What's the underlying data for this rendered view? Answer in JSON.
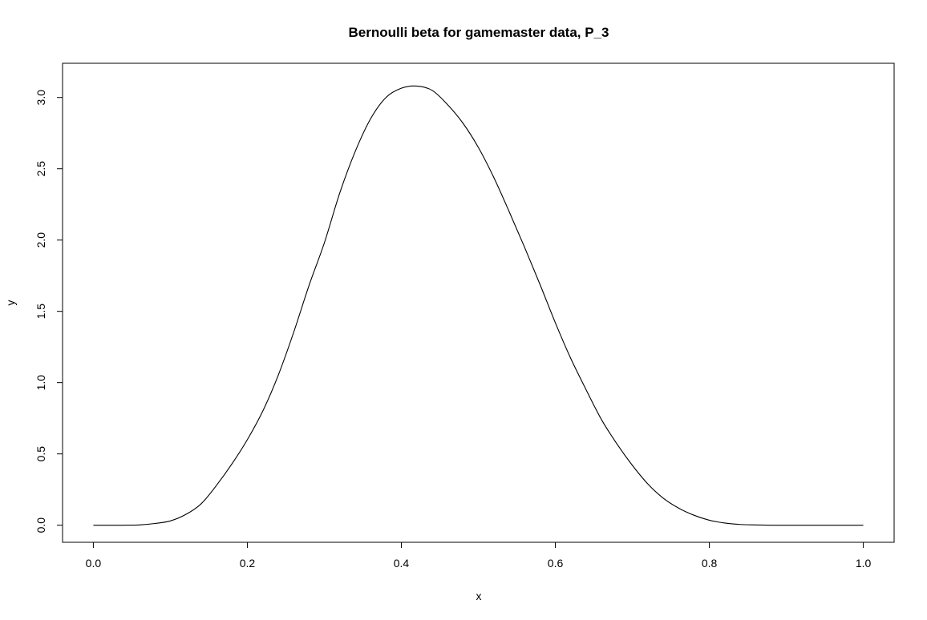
{
  "chart_data": {
    "type": "line",
    "title": "Bernoulli beta for gamemaster data, P_3",
    "xlabel": "x",
    "ylabel": "y",
    "xlim": [
      -0.04,
      1.04
    ],
    "ylim": [
      -0.12,
      3.24
    ],
    "x_ticks": [
      0.0,
      0.2,
      0.4,
      0.6,
      0.8,
      1.0
    ],
    "x_tick_labels": [
      "0.0",
      "0.2",
      "0.4",
      "0.6",
      "0.8",
      "1.0"
    ],
    "y_ticks": [
      0.0,
      0.5,
      1.0,
      1.5,
      2.0,
      2.5,
      3.0
    ],
    "y_tick_labels": [
      "0.0",
      "0.5",
      "1.0",
      "1.5",
      "2.0",
      "2.5",
      "3.0"
    ],
    "grid": false,
    "box": true,
    "series": [
      {
        "color": "#000000",
        "x": [
          0.0,
          0.02,
          0.04,
          0.06,
          0.08,
          0.1,
          0.12,
          0.14,
          0.16,
          0.18,
          0.2,
          0.22,
          0.24,
          0.26,
          0.28,
          0.3,
          0.32,
          0.34,
          0.36,
          0.38,
          0.4,
          0.42,
          0.44,
          0.46,
          0.48,
          0.5,
          0.52,
          0.54,
          0.56,
          0.58,
          0.6,
          0.62,
          0.64,
          0.66,
          0.68,
          0.7,
          0.72,
          0.74,
          0.76,
          0.78,
          0.8,
          0.82,
          0.84,
          0.86,
          0.88,
          0.9,
          0.92,
          0.94,
          0.96,
          0.98,
          1.0
        ],
        "y": [
          0.0,
          0.0,
          0.0,
          0.002,
          0.012,
          0.03,
          0.075,
          0.15,
          0.28,
          0.43,
          0.6,
          0.8,
          1.05,
          1.35,
          1.68,
          1.98,
          2.33,
          2.62,
          2.85,
          3.0,
          3.065,
          3.08,
          3.05,
          2.95,
          2.82,
          2.65,
          2.44,
          2.2,
          1.95,
          1.69,
          1.42,
          1.17,
          0.95,
          0.74,
          0.57,
          0.42,
          0.29,
          0.19,
          0.12,
          0.07,
          0.035,
          0.015,
          0.005,
          0.002,
          0.0,
          0.0,
          0.0,
          0.0,
          0.0,
          0.0,
          0.0
        ]
      }
    ]
  }
}
